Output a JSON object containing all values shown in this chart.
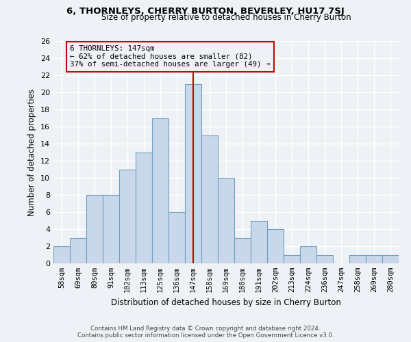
{
  "title": "6, THORNLEYS, CHERRY BURTON, BEVERLEY, HU17 7SJ",
  "subtitle": "Size of property relative to detached houses in Cherry Burton",
  "xlabel": "Distribution of detached houses by size in Cherry Burton",
  "ylabel": "Number of detached properties",
  "categories": [
    "58sqm",
    "69sqm",
    "80sqm",
    "91sqm",
    "102sqm",
    "113sqm",
    "125sqm",
    "136sqm",
    "147sqm",
    "158sqm",
    "169sqm",
    "180sqm",
    "191sqm",
    "202sqm",
    "213sqm",
    "224sqm",
    "236sqm",
    "247sqm",
    "258sqm",
    "269sqm",
    "280sqm"
  ],
  "values": [
    2,
    3,
    8,
    8,
    11,
    13,
    17,
    6,
    21,
    15,
    10,
    3,
    5,
    4,
    1,
    2,
    1,
    0,
    1,
    1,
    1
  ],
  "bar_color": "#c8d8ea",
  "bar_edge_color": "#6fa0c0",
  "marker_index": 8,
  "marker_line_color": "#cc0000",
  "annotation_line1": "6 THORNLEYS: 147sqm",
  "annotation_line2": "← 62% of detached houses are smaller (82)",
  "annotation_line3": "37% of semi-detached houses are larger (49) →",
  "annotation_box_edge_color": "#cc0000",
  "ylim": [
    0,
    26
  ],
  "yticks": [
    0,
    2,
    4,
    6,
    8,
    10,
    12,
    14,
    16,
    18,
    20,
    22,
    24,
    26
  ],
  "footer_line1": "Contains HM Land Registry data © Crown copyright and database right 2024.",
  "footer_line2": "Contains public sector information licensed under the Open Government Licence v3.0.",
  "background_color": "#eef2f7",
  "grid_color": "#ffffff"
}
